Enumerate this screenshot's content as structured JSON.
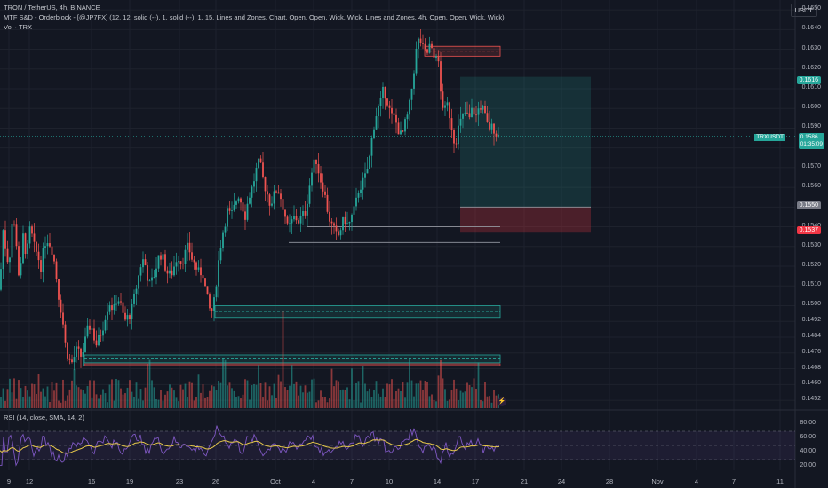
{
  "header": {
    "symbol_line": "TRON / TetherUS, 4h, BINANCE",
    "indicator_line": "MTF S&D - Orderblock - [@JP7FX] (12, 12, solid (--), 1, solid (--), 1, 15, Lines and Zones, Chart, Open, Open, Wick, Wick, Lines and Zones, 4h, Open, Open, Wick, Wick)",
    "volume_line": "Vol · TRX"
  },
  "currency_button": "USDT",
  "price_axis": [
    "0.1650",
    "0.1640",
    "0.1630",
    "0.1620",
    "0.1610",
    "0.1600",
    "0.1590",
    "0.1580",
    "0.1570",
    "0.1560",
    "0.1550",
    "0.1540",
    "0.1530",
    "0.1520",
    "0.1510",
    "0.1500",
    "0.1492",
    "0.1484",
    "0.1476",
    "0.1468",
    "0.1460",
    "0.1452"
  ],
  "price_tags": {
    "target": "0.1616",
    "current_symbol": "TRXUSDT",
    "current_price": "0.1586",
    "countdown": "01:35:09",
    "entry": "0.1550",
    "stop": "0.1537"
  },
  "rsi": {
    "label": "RSI (14, close, SMA, 14, 2)",
    "ticks": [
      "80.00",
      "60.00",
      "40.00",
      "20.00"
    ]
  },
  "time_axis": [
    "9",
    "12",
    "16",
    "19",
    "23",
    "26",
    "Oct",
    "4",
    "7",
    "10",
    "14",
    "17",
    "21",
    "24",
    "28",
    "Nov",
    "4",
    "7",
    "11"
  ],
  "colors": {
    "background": "#131722",
    "up": "#26a69a",
    "down": "#ef5350",
    "rsi_line": "#7e57c2",
    "rsi_ma": "#e6c84a",
    "target_tag": "#26a69a",
    "entry_tag": "#787b86",
    "stop_tag": "#f23645"
  },
  "chart_data": {
    "type": "candlestick",
    "symbol": "TRXUSDT",
    "timeframe": "4h",
    "ylim": [
      0.1448,
      0.1655
    ],
    "last_price": 0.1586,
    "path": [
      [
        0,
        0.1508
      ],
      [
        3,
        0.154
      ],
      [
        6,
        0.153
      ],
      [
        10,
        0.152
      ],
      [
        14,
        0.1545
      ],
      [
        18,
        0.1535
      ],
      [
        22,
        0.151
      ],
      [
        26,
        0.1535
      ],
      [
        30,
        0.1525
      ],
      [
        34,
        0.154
      ],
      [
        38,
        0.153
      ],
      [
        42,
        0.1526
      ],
      [
        46,
        0.152
      ],
      [
        52,
        0.1535
      ],
      [
        58,
        0.153
      ],
      [
        62,
        0.152
      ],
      [
        66,
        0.1505
      ],
      [
        70,
        0.1495
      ],
      [
        74,
        0.1478
      ],
      [
        80,
        0.147
      ],
      [
        86,
        0.1477
      ],
      [
        92,
        0.1474
      ],
      [
        96,
        0.1482
      ],
      [
        100,
        0.149
      ],
      [
        104,
        0.1488
      ],
      [
        108,
        0.148
      ],
      [
        112,
        0.1484
      ],
      [
        116,
        0.149
      ],
      [
        120,
        0.1498
      ],
      [
        124,
        0.1502
      ],
      [
        128,
        0.1497
      ],
      [
        132,
        0.1505
      ],
      [
        136,
        0.15
      ],
      [
        140,
        0.1492
      ],
      [
        144,
        0.1494
      ],
      [
        148,
        0.1497
      ],
      [
        152,
        0.1506
      ],
      [
        156,
        0.1515
      ],
      [
        160,
        0.1524
      ],
      [
        164,
        0.152
      ],
      [
        168,
        0.151
      ],
      [
        172,
        0.1513
      ],
      [
        176,
        0.152
      ],
      [
        180,
        0.1527
      ],
      [
        184,
        0.1523
      ],
      [
        188,
        0.1517
      ],
      [
        192,
        0.1515
      ],
      [
        196,
        0.152
      ],
      [
        200,
        0.1526
      ],
      [
        204,
        0.1522
      ],
      [
        208,
        0.1526
      ],
      [
        212,
        0.153
      ],
      [
        216,
        0.1524
      ],
      [
        220,
        0.152
      ],
      [
        224,
        0.1516
      ],
      [
        228,
        0.1518
      ],
      [
        232,
        0.1506
      ],
      [
        236,
        0.1498
      ],
      [
        240,
        0.1497
      ],
      [
        244,
        0.1515
      ],
      [
        248,
        0.153
      ],
      [
        252,
        0.154
      ],
      [
        256,
        0.1548
      ],
      [
        260,
        0.1545
      ],
      [
        264,
        0.155
      ],
      [
        268,
        0.1557
      ],
      [
        272,
        0.1552
      ],
      [
        276,
        0.1546
      ],
      [
        280,
        0.1555
      ],
      [
        284,
        0.156
      ],
      [
        288,
        0.1568
      ],
      [
        292,
        0.1573
      ],
      [
        296,
        0.1564
      ],
      [
        300,
        0.1558
      ],
      [
        304,
        0.1552
      ],
      [
        308,
        0.1555
      ],
      [
        312,
        0.156
      ],
      [
        316,
        0.1555
      ],
      [
        320,
        0.1548
      ],
      [
        324,
        0.1538
      ],
      [
        328,
        0.1542
      ],
      [
        332,
        0.1545
      ],
      [
        336,
        0.1543
      ],
      [
        340,
        0.1545
      ],
      [
        344,
        0.1548
      ],
      [
        348,
        0.156
      ],
      [
        352,
        0.157
      ],
      [
        356,
        0.1574
      ],
      [
        360,
        0.1565
      ],
      [
        364,
        0.156
      ],
      [
        368,
        0.155
      ],
      [
        372,
        0.1542
      ],
      [
        376,
        0.1538
      ],
      [
        380,
        0.1534
      ],
      [
        384,
        0.154
      ],
      [
        388,
        0.1544
      ],
      [
        392,
        0.154
      ],
      [
        396,
        0.1545
      ],
      [
        400,
        0.155
      ],
      [
        404,
        0.156
      ],
      [
        408,
        0.1562
      ],
      [
        412,
        0.1566
      ],
      [
        416,
        0.1575
      ],
      [
        420,
        0.159
      ],
      [
        424,
        0.1598
      ],
      [
        428,
        0.1602
      ],
      [
        432,
        0.161
      ],
      [
        436,
        0.1604
      ],
      [
        440,
        0.1596
      ],
      [
        444,
        0.1595
      ],
      [
        448,
        0.159
      ],
      [
        452,
        0.1585
      ],
      [
        456,
        0.1592
      ],
      [
        460,
        0.1598
      ],
      [
        464,
        0.1612
      ],
      [
        468,
        0.1628
      ],
      [
        472,
        0.1636
      ],
      [
        476,
        0.163
      ],
      [
        480,
        0.1627
      ],
      [
        484,
        0.1632
      ],
      [
        488,
        0.1625
      ],
      [
        492,
        0.163
      ],
      [
        496,
        0.1608
      ],
      [
        500,
        0.1598
      ],
      [
        504,
        0.1602
      ],
      [
        508,
        0.1592
      ],
      [
        512,
        0.1582
      ],
      [
        516,
        0.159
      ],
      [
        520,
        0.1595
      ],
      [
        524,
        0.1598
      ],
      [
        528,
        0.1594
      ],
      [
        532,
        0.16
      ],
      [
        536,
        0.1596
      ],
      [
        540,
        0.1602
      ],
      [
        544,
        0.1599
      ],
      [
        548,
        0.1592
      ],
      [
        552,
        0.159
      ],
      [
        556,
        0.159
      ],
      [
        560,
        0.1586
      ]
    ]
  }
}
